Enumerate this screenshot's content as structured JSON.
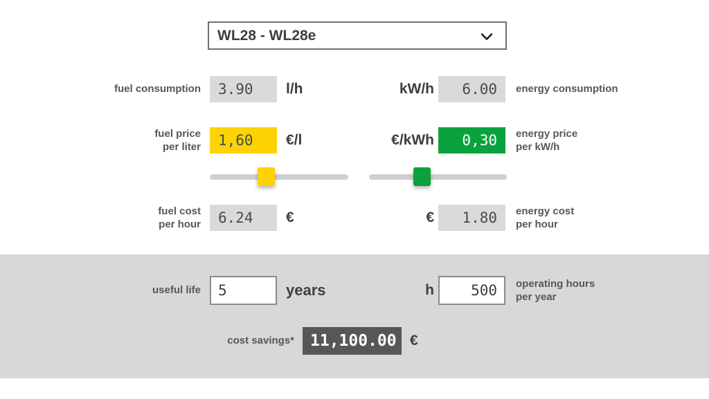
{
  "model_selector": {
    "value": "WL28 - WL28e"
  },
  "fuel": {
    "consumption": {
      "label": "fuel consumption",
      "value": "3.90",
      "unit": "l/h"
    },
    "price": {
      "label_line1": "fuel price",
      "label_line2": "per liter",
      "value": "1,60",
      "unit": "€/l"
    },
    "cost": {
      "label_line1": "fuel cost",
      "label_line2": "per hour",
      "value": "6.24",
      "unit": "€"
    }
  },
  "energy": {
    "consumption": {
      "unit": "kW/h",
      "value": "6.00",
      "label": "energy consumption"
    },
    "price": {
      "unit": "€/kWh",
      "value": "0,30",
      "label_line1": "energy price",
      "label_line2": "per kW/h"
    },
    "cost": {
      "unit": "€",
      "value": "1.80",
      "label_line1": "energy cost",
      "label_line2": "per hour"
    }
  },
  "lifetime": {
    "useful_life": {
      "label": "useful life",
      "value": "5",
      "unit": "years"
    },
    "operating_hours": {
      "unit": "h",
      "value": "500",
      "label_line1": "operating hours",
      "label_line2": "per year"
    }
  },
  "savings": {
    "label": "cost savings*",
    "value": "11,100.00",
    "unit": "€"
  },
  "sliders": {
    "fuel_handle_pct": 34.5,
    "energy_handle_pct": 32.2
  },
  "colors": {
    "fuel_accent": "#FDD305",
    "energy_accent": "#0AA23E",
    "field_gray": "#DADADA",
    "band_gray": "#D8D8D8",
    "savings_dark": "#575756"
  }
}
